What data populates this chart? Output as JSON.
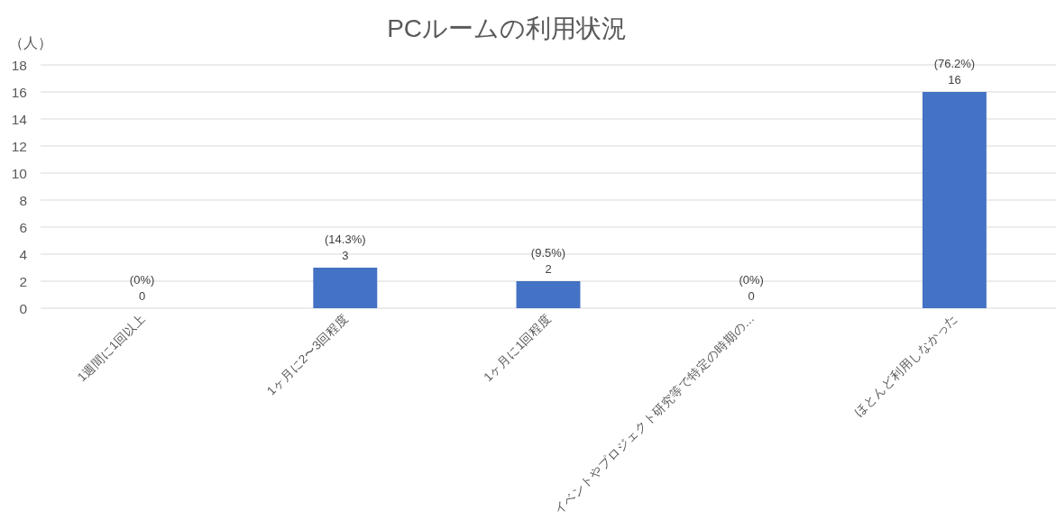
{
  "chart_data": {
    "type": "bar",
    "title": "PCルームの利用状況",
    "ylabel": "（人）",
    "categories": [
      "1週間に1回以上",
      "1ヶ月に2〜3回程度",
      "1ヶ月に1回程度",
      "イベントやプロジェクト研究等で特定の時期の…",
      "ほとんど利用しなかった"
    ],
    "values": [
      0,
      3,
      2,
      0,
      16
    ],
    "color": "#4472c4",
    "ylim": [
      0,
      18
    ],
    "yticks": [
      0,
      2,
      4,
      6,
      8,
      10,
      12,
      14,
      16,
      18
    ],
    "grid": "y",
    "value_labels": [
      "(0%)\n0",
      "(14.3%)\n3",
      "(9.5%)\n2",
      "(0%)\n0",
      "(76.2%)\n16"
    ]
  }
}
